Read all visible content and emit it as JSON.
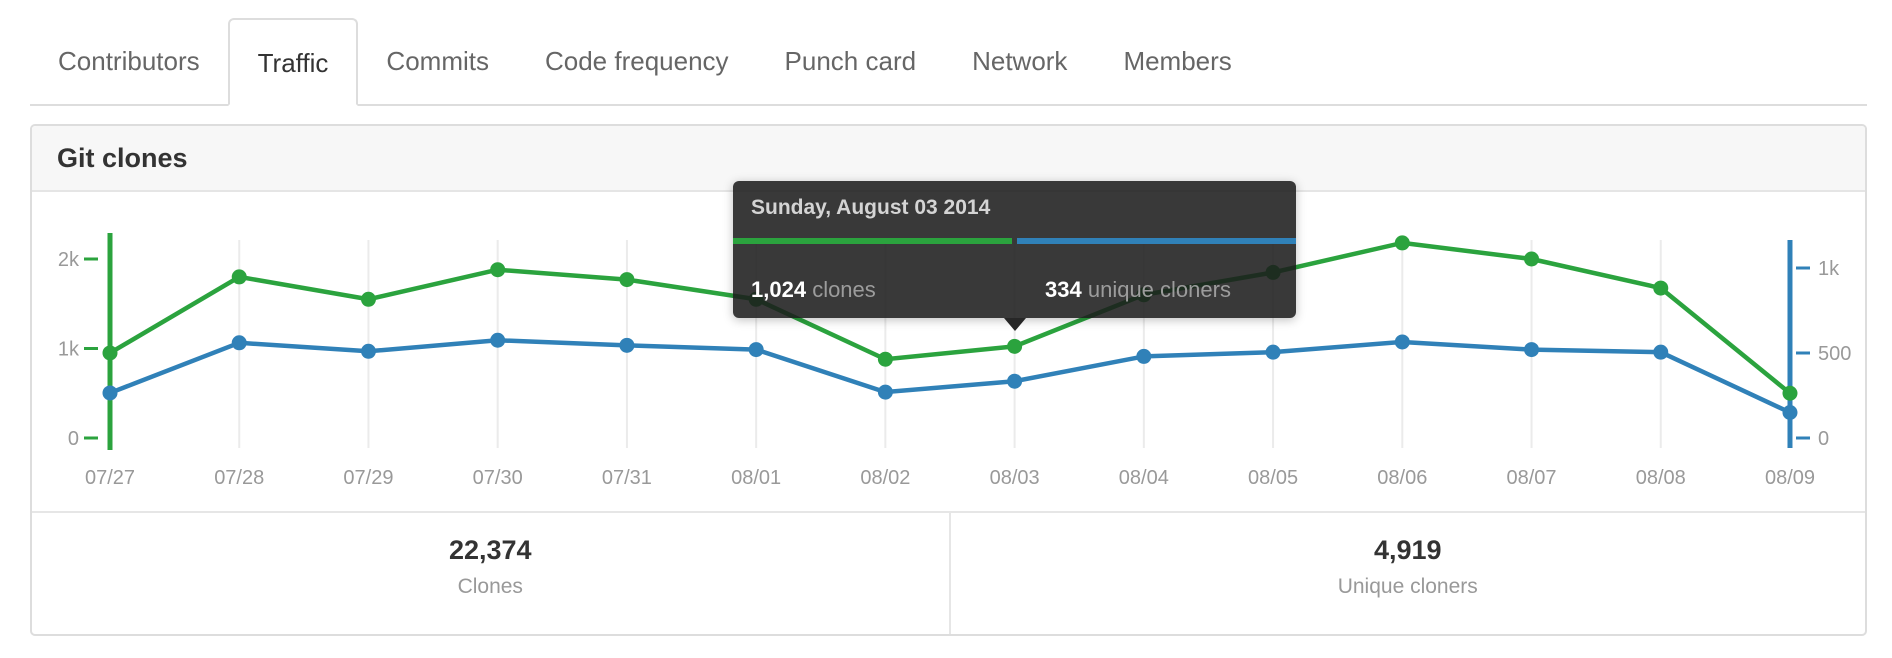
{
  "tabs": {
    "items": [
      {
        "label": "Contributors",
        "active": false
      },
      {
        "label": "Traffic",
        "active": true
      },
      {
        "label": "Commits",
        "active": false
      },
      {
        "label": "Code frequency",
        "active": false
      },
      {
        "label": "Punch card",
        "active": false
      },
      {
        "label": "Network",
        "active": false
      },
      {
        "label": "Members",
        "active": false
      }
    ]
  },
  "panel": {
    "title": "Git clones"
  },
  "tooltip": {
    "title": "Sunday, August 03 2014",
    "clones_value": "1,024",
    "clones_unit": "clones",
    "uniques_value": "334",
    "uniques_unit": "unique cloners"
  },
  "summary": {
    "clones_value": "22,374",
    "clones_label": "Clones",
    "uniques_value": "4,919",
    "uniques_label": "Unique cloners"
  },
  "colors": {
    "clones_green": "#2ba33e",
    "uniques_blue": "#3081b8",
    "gridline": "#ebebeb",
    "axis_label": "#999999"
  },
  "chart_data": {
    "type": "line",
    "title": "Git clones",
    "x": [
      "07/27",
      "07/28",
      "07/29",
      "07/30",
      "07/31",
      "08/01",
      "08/02",
      "08/03",
      "08/04",
      "08/05",
      "08/06",
      "08/07",
      "08/08",
      "08/09"
    ],
    "series": [
      {
        "name": "Clones",
        "axis": "left",
        "color": "#2ba33e",
        "values": [
          950,
          1800,
          1550,
          1880,
          1770,
          1550,
          880,
          1024,
          1600,
          1850,
          2180,
          2000,
          1675,
          500
        ]
      },
      {
        "name": "Unique cloners",
        "axis": "right",
        "color": "#3081b8",
        "values": [
          265,
          560,
          510,
          575,
          545,
          520,
          270,
          334,
          480,
          505,
          565,
          520,
          505,
          150
        ]
      }
    ],
    "left_axis": {
      "ticks": [
        {
          "value": 0,
          "label": "0"
        },
        {
          "value": 1000,
          "label": "1k"
        },
        {
          "value": 2000,
          "label": "2k"
        }
      ],
      "range": [
        0,
        2340
      ]
    },
    "right_axis": {
      "ticks": [
        {
          "value": 0,
          "label": "0"
        },
        {
          "value": 500,
          "label": "500"
        },
        {
          "value": 1000,
          "label": "1k"
        }
      ],
      "range": [
        0,
        1230
      ]
    },
    "grid": "vertical",
    "legend": "none",
    "highlighted_point": {
      "x": "08/03",
      "date": "Sunday, August 03 2014",
      "clones": 1024,
      "unique_cloners": 334
    }
  }
}
